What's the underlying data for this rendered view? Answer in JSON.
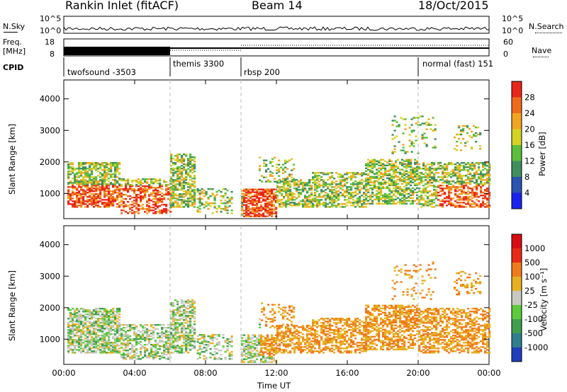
{
  "header": {
    "station": "Rankin Inlet (fitACF)",
    "beam": "Beam 14",
    "date": "18/Oct/2015"
  },
  "status_panels": {
    "nsky_label": "N.Sky",
    "nsearch_label": "N.Search",
    "freq_label_line1": "Freq.",
    "freq_label_line2": "[MHz]",
    "nave_label": "Nave",
    "cpid_label": "CPID",
    "noise_ticks": [
      "10^5",
      "10^0"
    ],
    "freq_ticks": [
      "18",
      "8"
    ],
    "nave_ticks": [
      "60",
      "0"
    ],
    "cpid_segments": [
      {
        "name": "twofsound -3503",
        "start_hour": 0
      },
      {
        "name": "themis 3300",
        "start_hour": 6
      },
      {
        "name": "rbsp 200",
        "start_hour": 10
      },
      {
        "name": "normal (fast) 151",
        "start_hour": 20
      }
    ]
  },
  "chart_data": [
    {
      "type": "heatmap",
      "title": "",
      "quantity": "Power",
      "xlabel": "",
      "ylabel": "Slant Range [km]",
      "xlim_hours": [
        0,
        24
      ],
      "ylim_km": [
        200,
        4600
      ],
      "x_tick_labels": [
        "00:00",
        "04:00",
        "08:00",
        "12:00",
        "16:00",
        "20:00",
        "00:00"
      ],
      "y_tick_labels": [
        "1000",
        "2000",
        "3000",
        "4000"
      ],
      "colorbar_label": "Power [dB]",
      "colorbar_ticks": [
        "4",
        "8",
        "12",
        "16",
        "20",
        "24",
        "28"
      ],
      "colorbar_colors": [
        "#1a22ee",
        "#2a54b0",
        "#3f8f5e",
        "#5cbf3c",
        "#d4d225",
        "#f2a421",
        "#f06a1e",
        "#e9261a"
      ],
      "mode_change_hours": [
        6,
        10,
        20
      ]
    },
    {
      "type": "heatmap",
      "title": "",
      "quantity": "Velocity",
      "xlabel": "Time UT",
      "ylabel": "Slant Range [km]",
      "xlim_hours": [
        0,
        24
      ],
      "ylim_km": [
        200,
        4600
      ],
      "x_tick_labels": [
        "00:00",
        "04:00",
        "08:00",
        "12:00",
        "16:00",
        "20:00",
        "00:00"
      ],
      "y_tick_labels": [
        "1000",
        "2000",
        "3000",
        "4000"
      ],
      "colorbar_label": "Velocity [m s⁻¹]",
      "colorbar_ticks": [
        "1000",
        "500",
        "100",
        "25",
        "-25",
        "-100",
        "-500",
        "-1000"
      ],
      "colorbar_colors": [
        "#1f3fbf",
        "#2f7f8f",
        "#3f9f4f",
        "#5ccc3c",
        "#c8c8c0",
        "#e8b020",
        "#f07a1a",
        "#e82a16",
        "#d80c10"
      ],
      "mode_change_hours": [
        6,
        10,
        20
      ]
    }
  ]
}
